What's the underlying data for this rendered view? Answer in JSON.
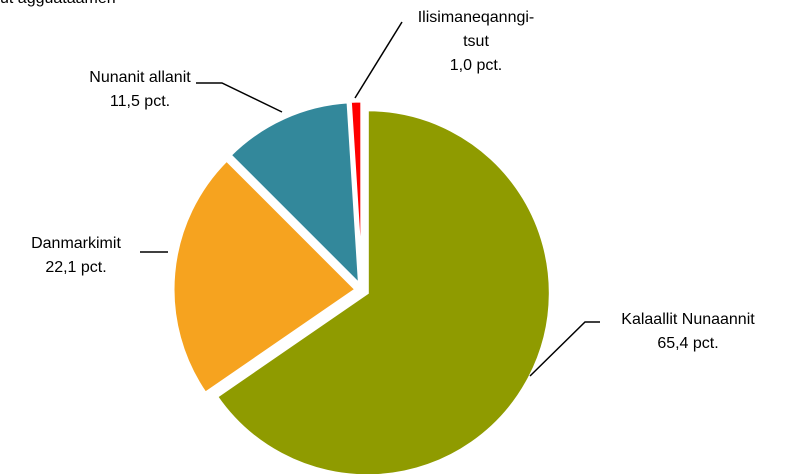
{
  "chart_data": {
    "type": "pie",
    "title": "ut agguataamen",
    "categories": [
      "Kalaallit Nunaannit",
      "Danmarkimit",
      "Nunanit allanit",
      "Ilisimaneqanngi-\ntsut"
    ],
    "values": [
      65.4,
      22.1,
      11.5,
      1.0
    ],
    "value_labels": [
      "65,4 pct.",
      "22,1 pct.",
      "11,5 pct.",
      "1,0 pct."
    ],
    "colors": [
      "#8f9b00",
      "#f6a31f",
      "#33889b",
      "#ff0000"
    ]
  }
}
